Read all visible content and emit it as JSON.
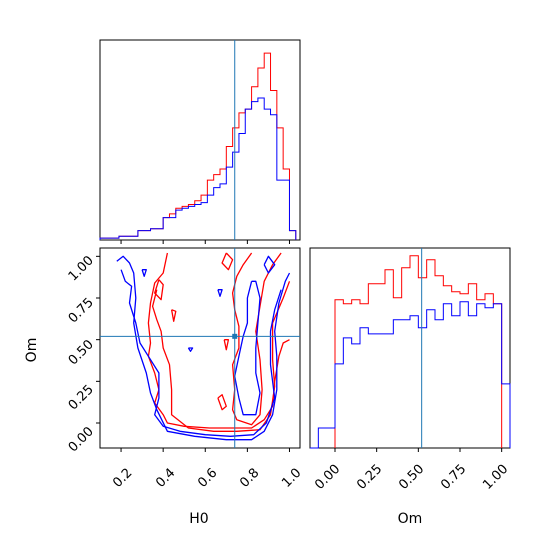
{
  "chart_data": [
    {
      "type": "histogram",
      "panel": "H0 marginal",
      "x_param": "H0",
      "xlim": [
        0.1,
        1.05
      ],
      "y_ticks": "none",
      "reference_line": 0.74,
      "series": [
        {
          "color": "#ff0000",
          "step_edges": [
            0.1,
            0.13,
            0.16,
            0.19,
            0.22,
            0.25,
            0.28,
            0.31,
            0.34,
            0.37,
            0.4,
            0.43,
            0.46,
            0.49,
            0.52,
            0.55,
            0.58,
            0.61,
            0.64,
            0.67,
            0.7,
            0.73,
            0.76,
            0.79,
            0.82,
            0.85,
            0.88,
            0.91,
            0.94,
            0.97,
            1.0,
            1.03
          ],
          "values": [
            1,
            1,
            1,
            2,
            2,
            2,
            5,
            5,
            6,
            6,
            12,
            14,
            17,
            18,
            19,
            21,
            24,
            32,
            35,
            38,
            50,
            60,
            68,
            70,
            82,
            92,
            100,
            80,
            60,
            38,
            5
          ]
        },
        {
          "color": "#0000ff",
          "step_edges": [
            0.1,
            0.13,
            0.16,
            0.19,
            0.22,
            0.25,
            0.28,
            0.31,
            0.34,
            0.37,
            0.4,
            0.43,
            0.46,
            0.49,
            0.52,
            0.55,
            0.58,
            0.61,
            0.64,
            0.67,
            0.7,
            0.73,
            0.76,
            0.79,
            0.82,
            0.85,
            0.88,
            0.91,
            0.94,
            0.97,
            1.0,
            1.03
          ],
          "values": [
            1,
            1,
            1,
            2,
            2,
            2,
            5,
            5,
            6,
            6,
            12,
            12,
            16,
            17,
            18,
            19,
            20,
            24,
            28,
            30,
            39,
            47,
            57,
            70,
            74,
            76,
            70,
            67,
            32,
            32,
            5
          ]
        }
      ]
    },
    {
      "type": "contour",
      "panel": "H0 vs Om",
      "xlabel": "H0",
      "ylabel": "Om",
      "xlim": [
        0.1,
        1.05
      ],
      "ylim": [
        -0.15,
        1.05
      ],
      "x_ticks": [
        "0.2",
        "0.4",
        "0.6",
        "0.8",
        "1.0"
      ],
      "y_ticks": [
        "0.00",
        "0.25",
        "0.50",
        "0.75",
        "1.00"
      ],
      "reference_point": [
        0.74,
        0.52
      ],
      "series": [
        {
          "color": "#ff0000",
          "contours": [
            [
              [
                0.42,
                1.02
              ],
              [
                0.4,
                0.9
              ],
              [
                0.36,
                0.84
              ],
              [
                0.34,
                0.72
              ],
              [
                0.33,
                0.6
              ],
              [
                0.34,
                0.48
              ],
              [
                0.33,
                0.4
              ],
              [
                0.36,
                0.3
              ],
              [
                0.38,
                0.2
              ],
              [
                0.36,
                0.12
              ],
              [
                0.4,
                0.05
              ],
              [
                0.42,
                0.0
              ],
              [
                0.5,
                -0.02
              ],
              [
                0.62,
                -0.03
              ],
              [
                0.72,
                -0.03
              ],
              [
                0.82,
                -0.03
              ],
              [
                0.88,
                0.02
              ],
              [
                0.92,
                0.1
              ],
              [
                0.93,
                0.25
              ],
              [
                0.95,
                0.4
              ],
              [
                0.97,
                0.48
              ],
              [
                1.0,
                0.5
              ]
            ],
            [
              [
                0.37,
                0.8
              ],
              [
                0.35,
                0.7
              ],
              [
                0.37,
                0.62
              ],
              [
                0.39,
                0.55
              ],
              [
                0.4,
                0.45
              ],
              [
                0.43,
                0.35
              ],
              [
                0.44,
                0.2
              ],
              [
                0.44,
                0.05
              ],
              [
                0.52,
                -0.03
              ],
              [
                0.64,
                -0.05
              ],
              [
                0.75,
                -0.05
              ],
              [
                0.86,
                -0.04
              ],
              [
                0.91,
                0.05
              ],
              [
                0.93,
                0.22
              ],
              [
                0.92,
                0.38
              ],
              [
                0.92,
                0.6
              ],
              [
                0.97,
                0.75
              ],
              [
                1.0,
                0.85
              ]
            ],
            [
              [
                0.82,
                1.02
              ],
              [
                0.78,
                0.95
              ],
              [
                0.75,
                0.88
              ],
              [
                0.73,
                0.78
              ],
              [
                0.74,
                0.68
              ],
              [
                0.76,
                0.58
              ],
              [
                0.76,
                0.45
              ],
              [
                0.73,
                0.35
              ],
              [
                0.74,
                0.2
              ],
              [
                0.73,
                0.08
              ],
              [
                0.75,
                0.02
              ],
              [
                0.82,
                -0.01
              ],
              [
                0.86,
                0.05
              ],
              [
                0.87,
                0.2
              ],
              [
                0.86,
                0.38
              ],
              [
                0.84,
                0.55
              ],
              [
                0.86,
                0.7
              ],
              [
                0.88,
                0.85
              ],
              [
                0.92,
                0.95
              ],
              [
                0.96,
                1.02
              ]
            ],
            [
              [
                0.66,
                0.15
              ],
              [
                0.68,
                0.08
              ],
              [
                0.7,
                0.1
              ],
              [
                0.68,
                0.17
              ],
              [
                0.66,
                0.15
              ]
            ],
            [
              [
                0.69,
                0.5
              ],
              [
                0.7,
                0.44
              ],
              [
                0.71,
                0.5
              ],
              [
                0.69,
                0.5
              ]
            ],
            [
              [
                0.44,
                0.68
              ],
              [
                0.45,
                0.61
              ],
              [
                0.46,
                0.67
              ],
              [
                0.44,
                0.68
              ]
            ],
            [
              [
                0.38,
                0.86
              ],
              [
                0.36,
                0.78
              ],
              [
                0.39,
                0.74
              ],
              [
                0.4,
                0.83
              ],
              [
                0.38,
                0.86
              ]
            ],
            [
              [
                0.7,
                1.02
              ],
              [
                0.68,
                0.96
              ],
              [
                0.71,
                0.92
              ],
              [
                0.73,
                0.98
              ],
              [
                0.7,
                1.02
              ]
            ]
          ]
        },
        {
          "color": "#0000ff",
          "contours": [
            [
              [
                0.18,
                0.97
              ],
              [
                0.21,
                1.0
              ],
              [
                0.24,
                0.96
              ],
              [
                0.26,
                0.9
              ],
              [
                0.27,
                0.75
              ],
              [
                0.26,
                0.6
              ],
              [
                0.28,
                0.45
              ],
              [
                0.32,
                0.3
              ],
              [
                0.34,
                0.18
              ],
              [
                0.37,
                0.08
              ],
              [
                0.42,
                -0.05
              ],
              [
                0.55,
                -0.08
              ],
              [
                0.7,
                -0.1
              ],
              [
                0.82,
                -0.1
              ],
              [
                0.88,
                -0.05
              ],
              [
                0.92,
                0.05
              ],
              [
                0.94,
                0.2
              ],
              [
                0.94,
                0.4
              ],
              [
                0.93,
                0.55
              ],
              [
                0.95,
                0.72
              ],
              [
                0.98,
                0.85
              ],
              [
                1.0,
                0.9
              ]
            ],
            [
              [
                0.2,
                0.92
              ],
              [
                0.22,
                0.85
              ],
              [
                0.25,
                0.82
              ],
              [
                0.24,
                0.72
              ],
              [
                0.27,
                0.6
              ],
              [
                0.29,
                0.48
              ],
              [
                0.33,
                0.4
              ],
              [
                0.38,
                0.3
              ],
              [
                0.38,
                0.15
              ],
              [
                0.36,
                0.05
              ],
              [
                0.4,
                -0.02
              ],
              [
                0.48,
                -0.05
              ],
              [
                0.6,
                -0.07
              ],
              [
                0.72,
                -0.08
              ],
              [
                0.83,
                -0.07
              ],
              [
                0.89,
                0.0
              ],
              [
                0.93,
                0.15
              ],
              [
                0.91,
                0.35
              ],
              [
                0.91,
                0.55
              ],
              [
                0.93,
                0.68
              ],
              [
                0.96,
                0.8
              ]
            ],
            [
              [
                0.82,
                0.85
              ],
              [
                0.8,
                0.75
              ],
              [
                0.8,
                0.6
              ],
              [
                0.78,
                0.52
              ],
              [
                0.76,
                0.4
              ],
              [
                0.74,
                0.28
              ],
              [
                0.76,
                0.15
              ],
              [
                0.78,
                0.05
              ],
              [
                0.84,
                0.05
              ],
              [
                0.86,
                0.18
              ],
              [
                0.84,
                0.3
              ],
              [
                0.84,
                0.45
              ],
              [
                0.85,
                0.6
              ],
              [
                0.86,
                0.75
              ],
              [
                0.84,
                0.85
              ],
              [
                0.82,
                0.85
              ]
            ],
            [
              [
                0.66,
                0.8
              ],
              [
                0.67,
                0.76
              ],
              [
                0.68,
                0.8
              ],
              [
                0.66,
                0.8
              ]
            ],
            [
              [
                0.3,
                0.92
              ],
              [
                0.31,
                0.88
              ],
              [
                0.32,
                0.92
              ],
              [
                0.3,
                0.92
              ]
            ],
            [
              [
                0.52,
                0.45
              ],
              [
                0.53,
                0.43
              ],
              [
                0.54,
                0.45
              ],
              [
                0.52,
                0.45
              ]
            ],
            [
              [
                0.88,
                0.95
              ],
              [
                0.9,
                0.9
              ],
              [
                0.93,
                0.95
              ],
              [
                0.9,
                1.0
              ],
              [
                0.88,
                0.95
              ]
            ]
          ]
        }
      ]
    },
    {
      "type": "histogram",
      "panel": "Om marginal",
      "xlabel": "Om",
      "xlim": [
        -0.15,
        1.05
      ],
      "x_ticks": [
        "0.00",
        "0.25",
        "0.50",
        "0.75",
        "1.00"
      ],
      "y_ticks": "none",
      "reference_line": 0.52,
      "series": [
        {
          "color": "#ff0000",
          "step_edges": [
            0.0,
            0.05,
            0.1,
            0.15,
            0.2,
            0.25,
            0.3,
            0.35,
            0.4,
            0.45,
            0.5,
            0.55,
            0.6,
            0.65,
            0.7,
            0.75,
            0.8,
            0.85,
            0.9,
            0.95,
            1.0
          ],
          "values": [
            74,
            72,
            74,
            72,
            82,
            82,
            89,
            75,
            90,
            96,
            85,
            94,
            86,
            81,
            78,
            77,
            82,
            74,
            77,
            72
          ]
        },
        {
          "color": "#0000ff",
          "step_edges": [
            -0.15,
            -0.1,
            -0.05,
            0.0,
            0.05,
            0.1,
            0.15,
            0.2,
            0.25,
            0.3,
            0.35,
            0.4,
            0.45,
            0.5,
            0.55,
            0.6,
            0.65,
            0.7,
            0.75,
            0.8,
            0.85,
            0.9,
            0.95,
            1.0,
            1.05
          ],
          "values": [
            0,
            10,
            10,
            42,
            55,
            52,
            60,
            57,
            57,
            57,
            64,
            64,
            66,
            60,
            69,
            64,
            72,
            66,
            73,
            66,
            72,
            70,
            72,
            32
          ]
        }
      ]
    }
  ]
}
